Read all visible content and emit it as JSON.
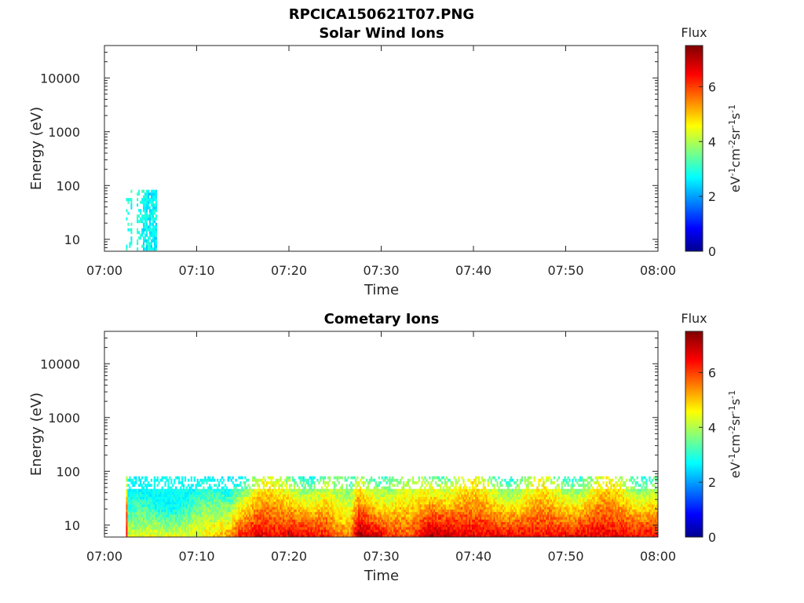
{
  "figure": {
    "title": "RPCICA150621T07.PNG"
  },
  "chart_data": [
    {
      "type": "heatmap",
      "title": "Solar Wind Ions",
      "xlabel": "Time",
      "ylabel": "Energy (eV)",
      "x_ticks": [
        "07:00",
        "07:10",
        "07:20",
        "07:30",
        "07:40",
        "07:50",
        "08:00"
      ],
      "xlim": [
        "07:00",
        "08:00"
      ],
      "y_scale": "log",
      "y_ticks": [
        "10",
        "100",
        "1000",
        "10000"
      ],
      "ylim": [
        6,
        40000
      ],
      "colorbar": {
        "title": "Flux",
        "label": "eV-1cm-2sr-1s-1",
        "range": [
          0,
          7.5
        ],
        "ticks": [
          "0",
          "2",
          "4",
          "6"
        ],
        "colormap": "jet"
      },
      "blocks": [
        {
          "t_start": "07:02:20",
          "t_end": "07:03:00",
          "e_min": 6,
          "e_max": 80,
          "flux": 3.0,
          "density": 0.3
        },
        {
          "t_start": "07:03:30",
          "t_end": "07:04:10",
          "e_min": 6,
          "e_max": 80,
          "flux": 3.0,
          "density": 0.4
        },
        {
          "t_start": "07:04:10",
          "t_end": "07:05:40",
          "e_min": 6,
          "e_max": 80,
          "flux": 2.8,
          "density": 0.85
        }
      ]
    },
    {
      "type": "heatmap",
      "title": "Cometary Ions",
      "xlabel": "Time",
      "ylabel": "Energy (eV)",
      "x_ticks": [
        "07:00",
        "07:10",
        "07:20",
        "07:30",
        "07:40",
        "07:50",
        "08:00"
      ],
      "xlim": [
        "07:00",
        "08:00"
      ],
      "y_scale": "log",
      "y_ticks": [
        "10",
        "100",
        "1000",
        "10000"
      ],
      "ylim": [
        6,
        40000
      ],
      "colorbar": {
        "title": "Flux",
        "label": "eV-1cm-2sr-1s-1",
        "range": [
          0,
          7.5
        ],
        "ticks": [
          "0",
          "2",
          "4",
          "6"
        ],
        "colormap": "jet"
      },
      "data_range": {
        "t_start": "07:02:20",
        "t_end": "08:00:00",
        "e_min": 6,
        "e_max": 80
      },
      "peak_flux_profile": [
        {
          "time": "07:02:30",
          "peak_flux": 4.3
        },
        {
          "time": "07:05:00",
          "peak_flux": 4.6
        },
        {
          "time": "07:08:00",
          "peak_flux": 4.5
        },
        {
          "time": "07:11:00",
          "peak_flux": 4.8
        },
        {
          "time": "07:13:30",
          "peak_flux": 5.5
        },
        {
          "time": "07:14:30",
          "peak_flux": 6.4
        },
        {
          "time": "07:16:30",
          "peak_flux": 6.8
        },
        {
          "time": "07:18:30",
          "peak_flux": 6.5
        },
        {
          "time": "07:20:30",
          "peak_flux": 6.8
        },
        {
          "time": "07:22:30",
          "peak_flux": 6.6
        },
        {
          "time": "07:24:00",
          "peak_flux": 6.4
        },
        {
          "time": "07:25:00",
          "peak_flux": 5.8
        },
        {
          "time": "07:26:30",
          "peak_flux": 5.6
        },
        {
          "time": "07:27:30",
          "peak_flux": 7.3
        },
        {
          "time": "07:29:00",
          "peak_flux": 7.0
        },
        {
          "time": "07:31:00",
          "peak_flux": 6.2
        },
        {
          "time": "07:33:00",
          "peak_flux": 6.0
        },
        {
          "time": "07:35:30",
          "peak_flux": 7.3
        },
        {
          "time": "07:37:30",
          "peak_flux": 7.0
        },
        {
          "time": "07:40:00",
          "peak_flux": 6.6
        },
        {
          "time": "07:42:30",
          "peak_flux": 6.7
        },
        {
          "time": "07:45:00",
          "peak_flux": 6.6
        },
        {
          "time": "07:47:30",
          "peak_flux": 6.5
        },
        {
          "time": "07:50:00",
          "peak_flux": 6.6
        },
        {
          "time": "07:52:30",
          "peak_flux": 6.8
        },
        {
          "time": "07:55:00",
          "peak_flux": 6.7
        },
        {
          "time": "07:57:30",
          "peak_flux": 6.6
        },
        {
          "time": "08:00:00",
          "peak_flux": 6.7
        }
      ]
    }
  ]
}
